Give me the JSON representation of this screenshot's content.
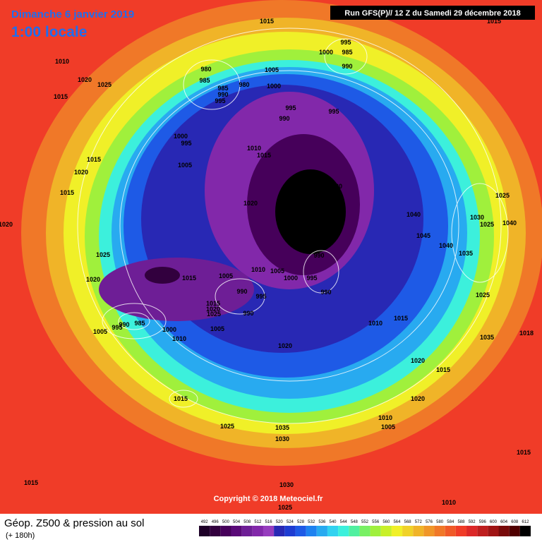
{
  "header": {
    "title": "Dimanche 6 janvier 2019",
    "time": "1:00 locale",
    "run": "Run GFS(P)// 12 Z du Samedi 29 décembre 2018"
  },
  "footer": {
    "title": "Géop. Z500 & pression au sol",
    "lead": "(+ 180h)",
    "copyright": "Copyright © 2018 Meteociel.fr"
  },
  "scale": [
    {
      "value": 492,
      "color": "#1e0028"
    },
    {
      "value": 496,
      "color": "#32003e"
    },
    {
      "value": 500,
      "color": "#46005a"
    },
    {
      "value": 504,
      "color": "#5a0a78"
    },
    {
      "value": 508,
      "color": "#6e1e96"
    },
    {
      "value": 512,
      "color": "#8228aa"
    },
    {
      "value": 516,
      "color": "#963cbe"
    },
    {
      "value": 520,
      "color": "#2828b4"
    },
    {
      "value": 524,
      "color": "#1e3cd2"
    },
    {
      "value": 528,
      "color": "#1e5ae6"
    },
    {
      "value": 532,
      "color": "#1e82f0"
    },
    {
      "value": 536,
      "color": "#28aaf0"
    },
    {
      "value": 540,
      "color": "#32d2f0"
    },
    {
      "value": 544,
      "color": "#3cf0dc"
    },
    {
      "value": 548,
      "color": "#50f0a0"
    },
    {
      "value": 552,
      "color": "#78f064"
    },
    {
      "value": 556,
      "color": "#a0f03c"
    },
    {
      "value": 560,
      "color": "#c8f028"
    },
    {
      "value": 564,
      "color": "#f0f028"
    },
    {
      "value": 568,
      "color": "#f0d228"
    },
    {
      "value": 572,
      "color": "#f0b428"
    },
    {
      "value": 576,
      "color": "#f09628"
    },
    {
      "value": 580,
      "color": "#f07828"
    },
    {
      "value": 584,
      "color": "#f05a28"
    },
    {
      "value": 588,
      "color": "#f03c28"
    },
    {
      "value": 592,
      "color": "#dc2828"
    },
    {
      "value": 596,
      "color": "#be1e1e"
    },
    {
      "value": 600,
      "color": "#a01414"
    },
    {
      "value": 604,
      "color": "#780a0a"
    },
    {
      "value": 608,
      "color": "#500000"
    },
    {
      "value": 612,
      "color": "#000000"
    }
  ],
  "isobar_labels": [
    1015,
    1015,
    1010,
    1020,
    1025,
    1015,
    995,
    1000,
    985,
    990,
    980,
    985,
    1005,
    980,
    1000,
    985,
    990,
    995,
    995,
    995,
    990,
    1000,
    995,
    1010,
    1015,
    1005,
    1015,
    1020,
    1020,
    1015,
    1020,
    1025,
    1040,
    1030,
    1025,
    1040,
    1020,
    1045,
    1040,
    1035,
    1025,
    990,
    1010,
    1005,
    1015,
    1005,
    1000,
    995,
    1020,
    990,
    995,
    990,
    1025,
    1015,
    1020,
    1025,
    990,
    1010,
    1015,
    985,
    990,
    995,
    1005,
    1000,
    1005,
    1018,
    1010,
    1035,
    1020,
    1020,
    1015,
    1020,
    1015,
    1025,
    1035,
    1010,
    1005,
    1030,
    1015,
    1015,
    1030,
    1010,
    1025
  ]
}
